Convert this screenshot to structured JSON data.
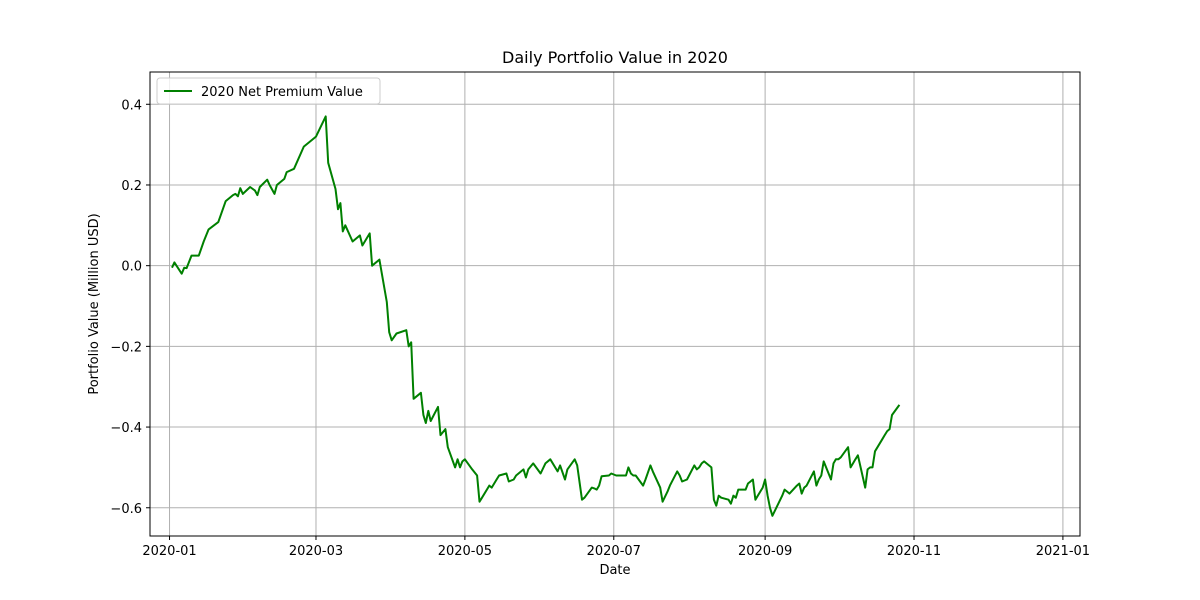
{
  "chart_data": {
    "type": "line",
    "title": "Daily Portfolio Value in 2020",
    "xlabel": "Date",
    "ylabel": "Portfolio Value (Million USD)",
    "xlim": [
      "2019-12-24",
      "2021-01-08"
    ],
    "ylim": [
      -0.67,
      0.48
    ],
    "x_ticks": [
      "2020-01-01",
      "2020-03-01",
      "2020-05-01",
      "2020-07-01",
      "2020-09-01",
      "2020-11-01",
      "2021-01-01"
    ],
    "x_tick_labels": [
      "2020-01",
      "2020-03",
      "2020-05",
      "2020-07",
      "2020-09",
      "2020-11",
      "2021-01"
    ],
    "y_ticks": [
      -0.6,
      -0.4,
      -0.2,
      0.0,
      0.2,
      0.4
    ],
    "y_tick_labels": [
      "−0.6",
      "−0.4",
      "−0.2",
      "0.0",
      "0.2",
      "0.4"
    ],
    "grid": true,
    "legend_position": "top-left",
    "colors": {
      "series": "#008000",
      "grid": "#b0b0b0"
    },
    "series": [
      {
        "name": "2020 Net Premium Value",
        "points": [
          [
            "2020-01-02",
            -0.005
          ],
          [
            "2020-01-03",
            0.008
          ],
          [
            "2020-01-06",
            -0.02
          ],
          [
            "2020-01-07",
            -0.005
          ],
          [
            "2020-01-08",
            -0.006
          ],
          [
            "2020-01-10",
            0.025
          ],
          [
            "2020-01-13",
            0.025
          ],
          [
            "2020-01-15",
            0.06
          ],
          [
            "2020-01-17",
            0.09
          ],
          [
            "2020-01-21",
            0.108
          ],
          [
            "2020-01-24",
            0.16
          ],
          [
            "2020-01-27",
            0.175
          ],
          [
            "2020-01-28",
            0.178
          ],
          [
            "2020-01-29",
            0.172
          ],
          [
            "2020-01-30",
            0.192
          ],
          [
            "2020-01-31",
            0.178
          ],
          [
            "2020-02-03",
            0.195
          ],
          [
            "2020-02-05",
            0.186
          ],
          [
            "2020-02-06",
            0.175
          ],
          [
            "2020-02-07",
            0.195
          ],
          [
            "2020-02-10",
            0.213
          ],
          [
            "2020-02-11",
            0.2
          ],
          [
            "2020-02-13",
            0.178
          ],
          [
            "2020-02-14",
            0.2
          ],
          [
            "2020-02-17",
            0.215
          ],
          [
            "2020-02-18",
            0.232
          ],
          [
            "2020-02-21",
            0.24
          ],
          [
            "2020-02-25",
            0.295
          ],
          [
            "2020-03-01",
            0.32
          ],
          [
            "2020-03-05",
            0.37
          ],
          [
            "2020-03-06",
            0.255
          ],
          [
            "2020-03-09",
            0.19
          ],
          [
            "2020-03-10",
            0.14
          ],
          [
            "2020-03-11",
            0.155
          ],
          [
            "2020-03-12",
            0.085
          ],
          [
            "2020-03-13",
            0.1
          ],
          [
            "2020-03-16",
            0.06
          ],
          [
            "2020-03-19",
            0.075
          ],
          [
            "2020-03-20",
            0.05
          ],
          [
            "2020-03-23",
            0.08
          ],
          [
            "2020-03-24",
            0.0
          ],
          [
            "2020-03-27",
            0.015
          ],
          [
            "2020-03-30",
            -0.09
          ],
          [
            "2020-03-31",
            -0.165
          ],
          [
            "2020-04-01",
            -0.185
          ],
          [
            "2020-04-03",
            -0.168
          ],
          [
            "2020-04-07",
            -0.16
          ],
          [
            "2020-04-08",
            -0.2
          ],
          [
            "2020-04-09",
            -0.19
          ],
          [
            "2020-04-10",
            -0.33
          ],
          [
            "2020-04-13",
            -0.315
          ],
          [
            "2020-04-14",
            -0.37
          ],
          [
            "2020-04-15",
            -0.39
          ],
          [
            "2020-04-16",
            -0.36
          ],
          [
            "2020-04-17",
            -0.385
          ],
          [
            "2020-04-20",
            -0.35
          ],
          [
            "2020-04-21",
            -0.42
          ],
          [
            "2020-04-23",
            -0.405
          ],
          [
            "2020-04-24",
            -0.45
          ],
          [
            "2020-04-27",
            -0.5
          ],
          [
            "2020-04-28",
            -0.48
          ],
          [
            "2020-04-29",
            -0.5
          ],
          [
            "2020-04-30",
            -0.485
          ],
          [
            "2020-05-01",
            -0.48
          ],
          [
            "2020-05-04",
            -0.505
          ],
          [
            "2020-05-06",
            -0.52
          ],
          [
            "2020-05-07",
            -0.585
          ],
          [
            "2020-05-08",
            -0.575
          ],
          [
            "2020-05-11",
            -0.545
          ],
          [
            "2020-05-12",
            -0.55
          ],
          [
            "2020-05-14",
            -0.53
          ],
          [
            "2020-05-15",
            -0.52
          ],
          [
            "2020-05-18",
            -0.515
          ],
          [
            "2020-05-19",
            -0.535
          ],
          [
            "2020-05-21",
            -0.53
          ],
          [
            "2020-05-22",
            -0.52
          ],
          [
            "2020-05-25",
            -0.505
          ],
          [
            "2020-05-26",
            -0.525
          ],
          [
            "2020-05-27",
            -0.505
          ],
          [
            "2020-05-29",
            -0.49
          ],
          [
            "2020-06-01",
            -0.515
          ],
          [
            "2020-06-03",
            -0.49
          ],
          [
            "2020-06-05",
            -0.48
          ],
          [
            "2020-06-08",
            -0.51
          ],
          [
            "2020-06-09",
            -0.495
          ],
          [
            "2020-06-11",
            -0.53
          ],
          [
            "2020-06-12",
            -0.505
          ],
          [
            "2020-06-15",
            -0.48
          ],
          [
            "2020-06-16",
            -0.495
          ],
          [
            "2020-06-18",
            -0.58
          ],
          [
            "2020-06-19",
            -0.575
          ],
          [
            "2020-06-22",
            -0.55
          ],
          [
            "2020-06-23",
            -0.552
          ],
          [
            "2020-06-24",
            -0.555
          ],
          [
            "2020-06-25",
            -0.545
          ],
          [
            "2020-06-26",
            -0.522
          ],
          [
            "2020-06-29",
            -0.52
          ],
          [
            "2020-06-30",
            -0.515
          ],
          [
            "2020-07-02",
            -0.52
          ],
          [
            "2020-07-06",
            -0.52
          ],
          [
            "2020-07-07",
            -0.5
          ],
          [
            "2020-07-08",
            -0.515
          ],
          [
            "2020-07-09",
            -0.52
          ],
          [
            "2020-07-10",
            -0.52
          ],
          [
            "2020-07-13",
            -0.545
          ],
          [
            "2020-07-14",
            -0.53
          ],
          [
            "2020-07-16",
            -0.495
          ],
          [
            "2020-07-17",
            -0.51
          ],
          [
            "2020-07-20",
            -0.55
          ],
          [
            "2020-07-21",
            -0.585
          ],
          [
            "2020-07-23",
            -0.56
          ],
          [
            "2020-07-24",
            -0.545
          ],
          [
            "2020-07-27",
            -0.51
          ],
          [
            "2020-07-28",
            -0.52
          ],
          [
            "2020-07-29",
            -0.535
          ],
          [
            "2020-07-31",
            -0.53
          ],
          [
            "2020-08-03",
            -0.495
          ],
          [
            "2020-08-04",
            -0.505
          ],
          [
            "2020-08-05",
            -0.5
          ],
          [
            "2020-08-06",
            -0.49
          ],
          [
            "2020-08-07",
            -0.485
          ],
          [
            "2020-08-10",
            -0.5
          ],
          [
            "2020-08-11",
            -0.58
          ],
          [
            "2020-08-12",
            -0.595
          ],
          [
            "2020-08-13",
            -0.57
          ],
          [
            "2020-08-14",
            -0.575
          ],
          [
            "2020-08-17",
            -0.58
          ],
          [
            "2020-08-18",
            -0.59
          ],
          [
            "2020-08-19",
            -0.57
          ],
          [
            "2020-08-20",
            -0.575
          ],
          [
            "2020-08-21",
            -0.555
          ],
          [
            "2020-08-24",
            -0.555
          ],
          [
            "2020-08-25",
            -0.54
          ],
          [
            "2020-08-26",
            -0.535
          ],
          [
            "2020-08-27",
            -0.53
          ],
          [
            "2020-08-28",
            -0.58
          ],
          [
            "2020-08-31",
            -0.55
          ],
          [
            "2020-09-01",
            -0.53
          ],
          [
            "2020-09-02",
            -0.57
          ],
          [
            "2020-09-03",
            -0.6
          ],
          [
            "2020-09-04",
            -0.62
          ],
          [
            "2020-09-08",
            -0.57
          ],
          [
            "2020-09-09",
            -0.555
          ],
          [
            "2020-09-10",
            -0.56
          ],
          [
            "2020-09-11",
            -0.565
          ],
          [
            "2020-09-14",
            -0.545
          ],
          [
            "2020-09-15",
            -0.54
          ],
          [
            "2020-09-16",
            -0.565
          ],
          [
            "2020-09-17",
            -0.55
          ],
          [
            "2020-09-18",
            -0.545
          ],
          [
            "2020-09-21",
            -0.51
          ],
          [
            "2020-09-22",
            -0.545
          ],
          [
            "2020-09-23",
            -0.53
          ],
          [
            "2020-09-24",
            -0.52
          ],
          [
            "2020-09-25",
            -0.485
          ],
          [
            "2020-09-28",
            -0.53
          ],
          [
            "2020-09-29",
            -0.49
          ],
          [
            "2020-09-30",
            -0.48
          ],
          [
            "2020-10-01",
            -0.48
          ],
          [
            "2020-10-02",
            -0.475
          ],
          [
            "2020-10-05",
            -0.45
          ],
          [
            "2020-10-06",
            -0.5
          ],
          [
            "2020-10-07",
            -0.49
          ],
          [
            "2020-10-08",
            -0.48
          ],
          [
            "2020-10-09",
            -0.47
          ],
          [
            "2020-10-12",
            -0.55
          ],
          [
            "2020-10-13",
            -0.505
          ],
          [
            "2020-10-14",
            -0.5
          ],
          [
            "2020-10-15",
            -0.5
          ],
          [
            "2020-10-16",
            -0.46
          ],
          [
            "2020-10-19",
            -0.43
          ],
          [
            "2020-10-20",
            -0.42
          ],
          [
            "2020-10-21",
            -0.41
          ],
          [
            "2020-10-22",
            -0.405
          ],
          [
            "2020-10-23",
            -0.37
          ],
          [
            "2020-10-26",
            -0.345
          ]
        ]
      }
    ]
  }
}
